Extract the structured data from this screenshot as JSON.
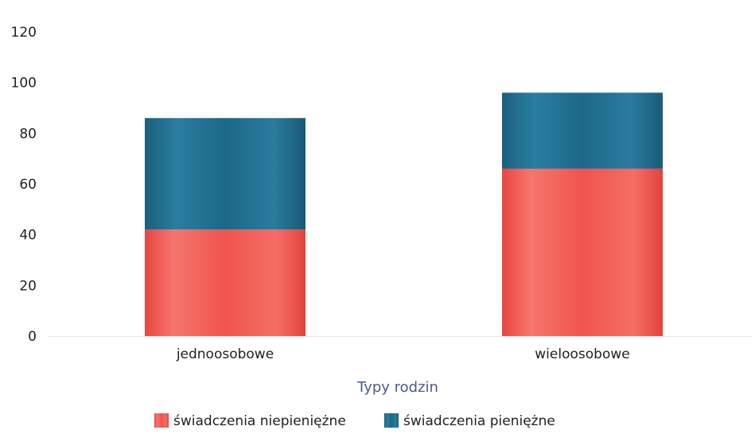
{
  "chart_data": {
    "type": "bar",
    "stacked": true,
    "categories": [
      "jednoosobowe",
      "wieloosobowe"
    ],
    "series": [
      {
        "name": "świadczenia niepieniężne",
        "values": [
          42,
          66
        ],
        "color": "#f0504a"
      },
      {
        "name": "świadczenia pieniężne",
        "values": [
          44,
          30
        ],
        "color": "#1e6a8a"
      }
    ],
    "xlabel": "Typy rodzin",
    "ylabel": "",
    "ylim": [
      0,
      120
    ],
    "yticks": [
      0,
      20,
      40,
      60,
      80,
      100,
      120
    ],
    "grid": false,
    "legend_position": "bottom-center"
  }
}
